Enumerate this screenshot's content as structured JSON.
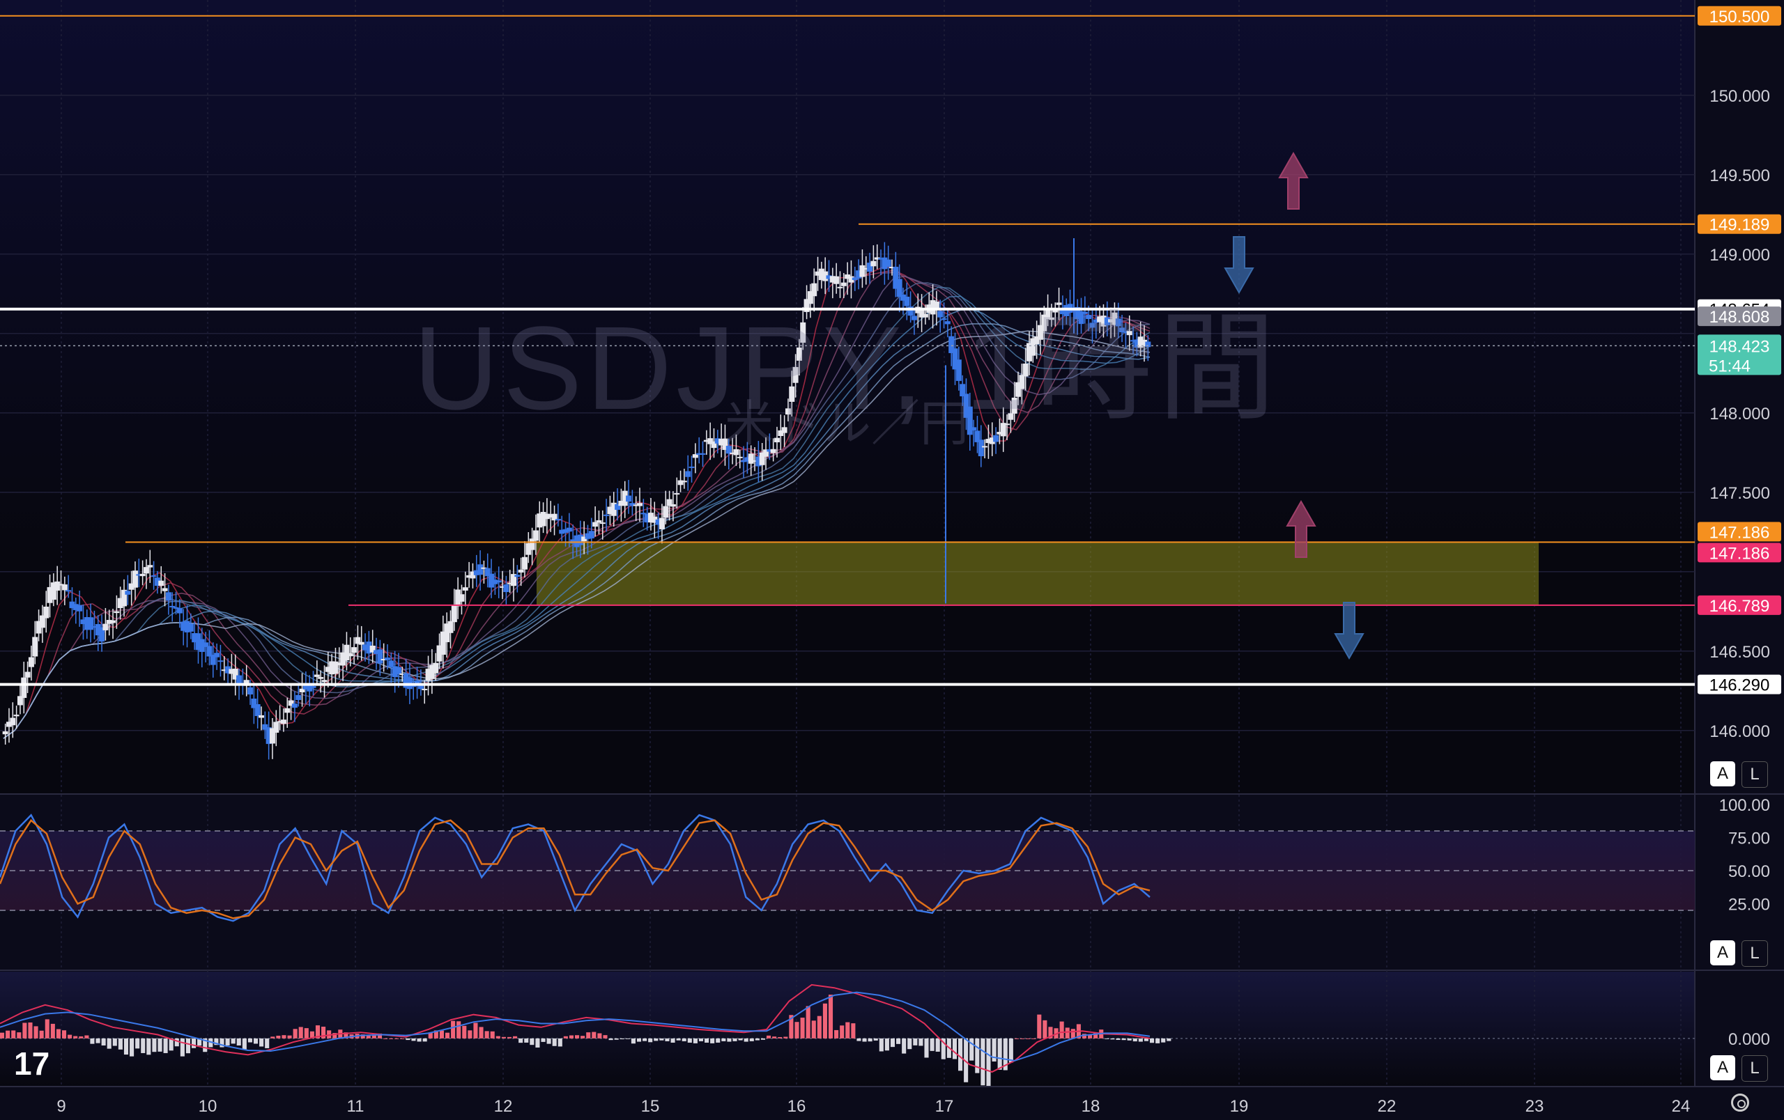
{
  "chart_data": {
    "type": "candlestick",
    "title": "USDJPY, 1時間",
    "subtitle": "米ドル／円",
    "x_ticks": [
      "9",
      "10",
      "11",
      "12",
      "15",
      "16",
      "17",
      "18",
      "19",
      "22",
      "23",
      "24"
    ],
    "y_ticks": [
      "146.000",
      "146.500",
      "147.000",
      "147.500",
      "148.000",
      "148.500",
      "149.000",
      "149.500",
      "150.000"
    ],
    "ylim": [
      145.6,
      150.6
    ],
    "price_lines": [
      {
        "label": "150.500",
        "value": 150.5,
        "color": "#f5901f"
      },
      {
        "label": "149.189",
        "value": 149.189,
        "color": "#f5901f"
      },
      {
        "label": "148.654",
        "value": 148.654,
        "color": "#ffffff"
      },
      {
        "label": "148.608",
        "value": 148.608,
        "color": "#8a8a96"
      },
      {
        "label": "147.186",
        "value": 147.186,
        "color": "#f5901f"
      },
      {
        "label": "147.186",
        "value": 147.186,
        "color": "#f0306e"
      },
      {
        "label": "146.789",
        "value": 146.789,
        "color": "#f0306e"
      },
      {
        "label": "146.290",
        "value": 146.29,
        "color": "#ffffff"
      }
    ],
    "last_price": {
      "label": "148.423",
      "countdown": "51:44",
      "value": 148.423,
      "color": "#4fc7b0"
    },
    "zone": {
      "top": 147.186,
      "bottom": 146.789,
      "color": "#8a8a1a"
    },
    "close_series": [
      145.95,
      146.05,
      146.3,
      146.6,
      146.82,
      146.95,
      146.85,
      146.72,
      146.65,
      146.6,
      146.7,
      146.85,
      146.98,
      147.05,
      146.95,
      146.82,
      146.7,
      146.6,
      146.52,
      146.45,
      146.38,
      146.35,
      146.3,
      146.12,
      145.95,
      146.05,
      146.15,
      146.25,
      146.3,
      146.35,
      146.42,
      146.5,
      146.58,
      146.52,
      146.45,
      146.38,
      146.32,
      146.28,
      146.3,
      146.45,
      146.65,
      146.85,
      146.98,
      147.02,
      146.92,
      146.88,
      146.95,
      147.1,
      147.3,
      147.38,
      147.3,
      147.22,
      147.18,
      147.25,
      147.32,
      147.4,
      147.48,
      147.44,
      147.35,
      147.3,
      147.42,
      147.55,
      147.68,
      147.78,
      147.82,
      147.8,
      147.75,
      147.72,
      147.7,
      147.75,
      147.85,
      148.15,
      148.6,
      148.85,
      148.88,
      148.82,
      148.86,
      148.88,
      148.92,
      148.95,
      148.88,
      148.7,
      148.62,
      148.65,
      148.68,
      148.52,
      148.2,
      147.9,
      147.75,
      147.82,
      147.9,
      148.1,
      148.35,
      148.5,
      148.62,
      148.66,
      148.64,
      148.6,
      148.55,
      148.58,
      148.6,
      148.52,
      148.45,
      148.423
    ],
    "stochastic": {
      "levels": [
        "100.00",
        "75.00",
        "50.00",
        "25.00"
      ],
      "range": [
        0,
        100
      ],
      "k": [
        45,
        80,
        92,
        70,
        30,
        15,
        40,
        75,
        85,
        60,
        25,
        18,
        20,
        22,
        15,
        12,
        18,
        35,
        70,
        82,
        60,
        40,
        80,
        70,
        25,
        18,
        45,
        80,
        90,
        85,
        70,
        45,
        60,
        82,
        85,
        80,
        50,
        20,
        40,
        55,
        70,
        65,
        40,
        55,
        80,
        92,
        88,
        70,
        30,
        20,
        40,
        70,
        85,
        88,
        80,
        60,
        42,
        55,
        40,
        20,
        18,
        35,
        50,
        48,
        50,
        55,
        80,
        90,
        85,
        80,
        60,
        25,
        35,
        40,
        30
      ],
      "d": [
        40,
        70,
        88,
        78,
        45,
        25,
        30,
        60,
        80,
        70,
        40,
        22,
        18,
        20,
        18,
        14,
        16,
        28,
        55,
        75,
        70,
        50,
        65,
        72,
        45,
        22,
        35,
        65,
        85,
        88,
        78,
        55,
        55,
        75,
        82,
        82,
        62,
        32,
        32,
        48,
        62,
        66,
        52,
        50,
        68,
        86,
        88,
        78,
        48,
        28,
        32,
        58,
        78,
        86,
        84,
        68,
        50,
        50,
        45,
        28,
        20,
        28,
        42,
        46,
        48,
        52,
        68,
        84,
        86,
        82,
        68,
        40,
        32,
        38,
        35
      ]
    },
    "macd": {
      "zero_label": "0.000",
      "macd": [
        0.2,
        0.35,
        0.45,
        0.38,
        0.25,
        0.15,
        0.1,
        0.05,
        -0.05,
        -0.12,
        -0.18,
        -0.22,
        -0.15,
        -0.05,
        0.02,
        0.06,
        0.08,
        0.05,
        0.02,
        0.12,
        0.25,
        0.32,
        0.28,
        0.18,
        0.15,
        0.22,
        0.28,
        0.25,
        0.2,
        0.18,
        0.15,
        0.12,
        0.1,
        0.08,
        0.12,
        0.5,
        0.72,
        0.68,
        0.6,
        0.5,
        0.4,
        0.2,
        -0.1,
        -0.35,
        -0.45,
        -0.3,
        -0.05,
        0.08,
        0.1,
        0.06,
        0.05,
        0.0
      ],
      "signal": [
        0.15,
        0.25,
        0.33,
        0.35,
        0.32,
        0.26,
        0.2,
        0.14,
        0.06,
        -0.02,
        -0.1,
        -0.16,
        -0.17,
        -0.12,
        -0.06,
        0.0,
        0.04,
        0.05,
        0.04,
        0.07,
        0.14,
        0.22,
        0.26,
        0.24,
        0.2,
        0.2,
        0.24,
        0.26,
        0.24,
        0.21,
        0.18,
        0.15,
        0.12,
        0.1,
        0.1,
        0.25,
        0.45,
        0.58,
        0.62,
        0.58,
        0.5,
        0.38,
        0.18,
        -0.05,
        -0.25,
        -0.3,
        -0.2,
        -0.06,
        0.04,
        0.07,
        0.07,
        0.03
      ],
      "range": [
        -0.6,
        0.85
      ]
    },
    "arrows": [
      {
        "direction": "up",
        "color": "#a0406a"
      },
      {
        "direction": "down",
        "color": "#3a6aa8"
      },
      {
        "direction": "up",
        "color": "#a0406a"
      },
      {
        "direction": "down",
        "color": "#3a6aa8"
      }
    ]
  },
  "ui": {
    "watermark_title": "USDJPY, 1時間",
    "watermark_subtitle": "米ドル／円",
    "auto_label": "A",
    "log_label": "L",
    "logo": "17"
  }
}
